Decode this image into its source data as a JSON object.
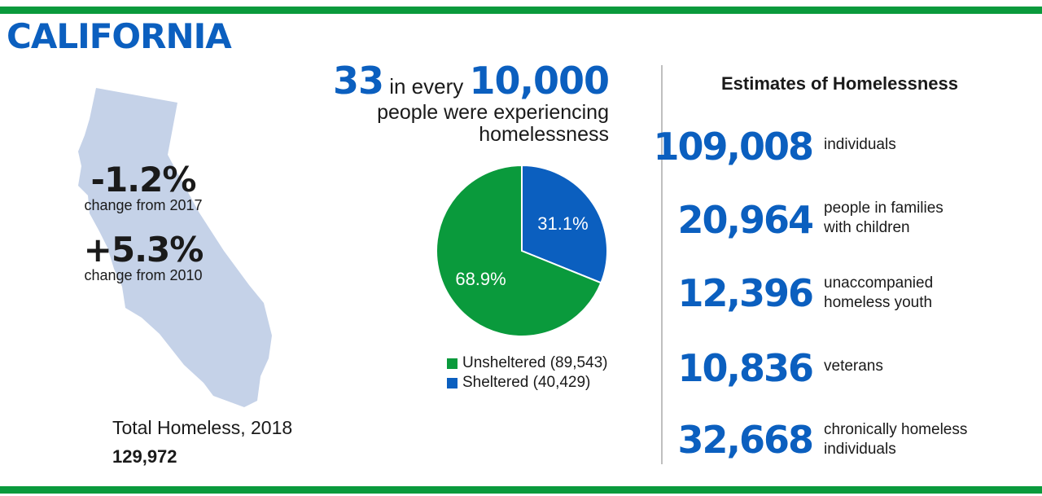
{
  "title": "CALIFORNIA",
  "changes": [
    {
      "value": "-1.2%",
      "label": "change from 2017"
    },
    {
      "value": "+5.3%",
      "label": "change from 2010"
    }
  ],
  "total": {
    "label": "Total Homeless, 2018",
    "value": "129,972"
  },
  "rate": {
    "number": "33",
    "middle": "in every",
    "per": "10,000",
    "line2": "people were experiencing",
    "line3": "homelessness"
  },
  "colors": {
    "unsheltered": "#0a9a3c",
    "sheltered": "#0b5fbf",
    "map": "#c5d2e8",
    "accent": "#0b5fbf"
  },
  "chart_data": {
    "type": "pie",
    "slices": [
      {
        "name": "Unsheltered (89,543)",
        "value": 68.9,
        "label": "68.9%",
        "color": "#0a9a3c"
      },
      {
        "name": "Sheltered (40,429)",
        "value": 31.1,
        "label": "31.1%",
        "color": "#0b5fbf"
      }
    ]
  },
  "estimates": {
    "title": "Estimates of Homelessness",
    "items": [
      {
        "number": "109,008",
        "label": [
          "individuals"
        ]
      },
      {
        "number": "20,964",
        "label": [
          "people in families",
          "with children"
        ]
      },
      {
        "number": "12,396",
        "label": [
          "unaccompanied",
          "homeless youth"
        ]
      },
      {
        "number": "10,836",
        "label": [
          "veterans"
        ]
      },
      {
        "number": "32,668",
        "label": [
          "chronically homeless",
          "individuals"
        ]
      }
    ]
  }
}
